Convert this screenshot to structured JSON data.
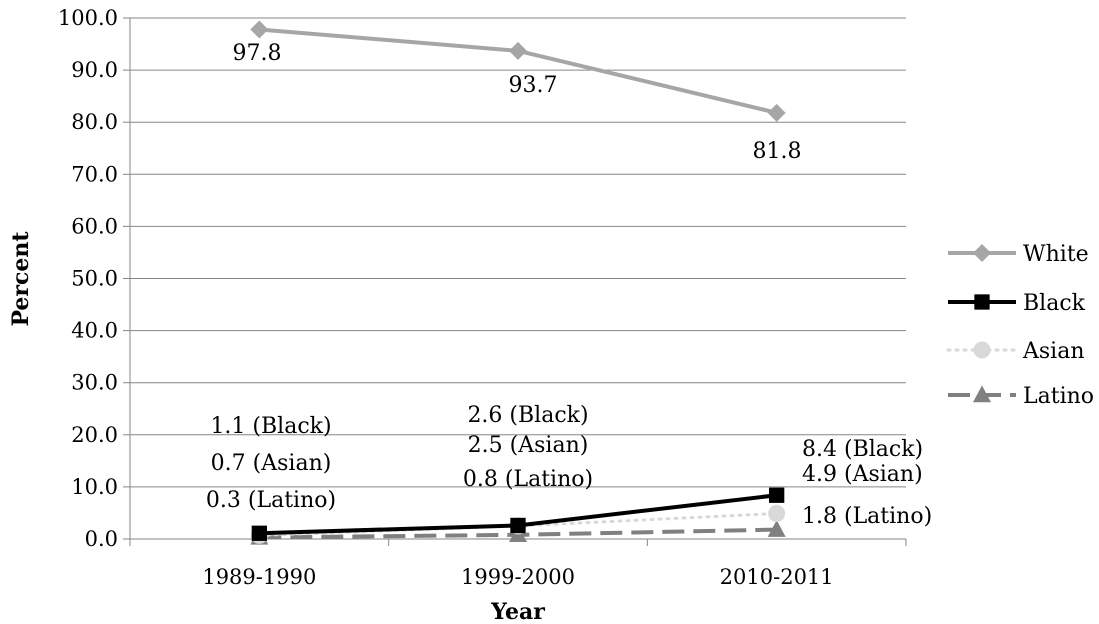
{
  "chart_data": {
    "type": "line",
    "title": "",
    "xlabel": "Year",
    "ylabel": "Percent",
    "categories": [
      "1989-1990",
      "1999-2000",
      "2010-2011"
    ],
    "ylim": [
      0,
      100
    ],
    "yticks": [
      "0.0",
      "10.0",
      "20.0",
      "30.0",
      "40.0",
      "50.0",
      "60.0",
      "70.0",
      "80.0",
      "90.0",
      "100.0"
    ],
    "grid": true,
    "legend_position": "right",
    "series": [
      {
        "name": "White",
        "values": [
          97.8,
          93.7,
          81.8
        ],
        "color": "#a6a6a6",
        "marker": "diamond",
        "line": "solid"
      },
      {
        "name": "Black",
        "values": [
          1.1,
          2.6,
          8.4
        ],
        "color": "#000000",
        "marker": "square",
        "line": "solid"
      },
      {
        "name": "Asian",
        "values": [
          0.7,
          2.5,
          4.9
        ],
        "color": "#d9d9d9",
        "marker": "circle",
        "line": "dotted"
      },
      {
        "name": "Latino",
        "values": [
          0.3,
          0.8,
          1.8
        ],
        "color": "#808080",
        "marker": "triangle",
        "line": "dashed"
      }
    ],
    "data_labels": {
      "white": [
        "97.8",
        "93.7",
        "81.8"
      ],
      "black": [
        "1.1 (Black)",
        "2.6 (Black)",
        "8.4 (Black)"
      ],
      "asian": [
        "0.7 (Asian)",
        "2.5 (Asian)",
        "4.9 (Asian)"
      ],
      "latino": [
        "0.3 (Latino)",
        "0.8 (Latino)",
        "1.8 (Latino)"
      ]
    }
  }
}
